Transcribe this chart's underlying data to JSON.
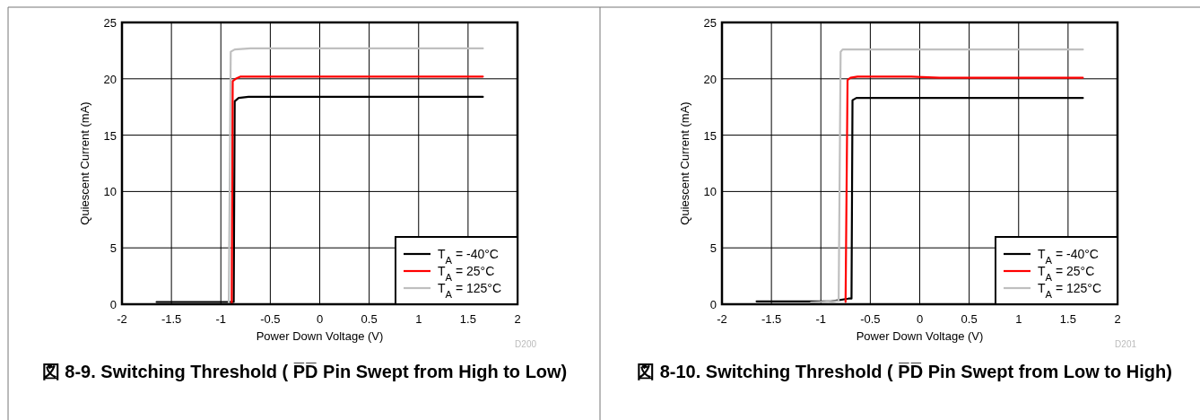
{
  "chart_data": [
    {
      "type": "line",
      "title": "図 8-9. Switching Threshold ( P̅D̅ Pin Swept from High to Low)",
      "xlabel": "Power Down Voltage (V)",
      "ylabel": "Quiescent Current (mA)",
      "annotations": [
        "D200"
      ],
      "xlim": [
        -2,
        2
      ],
      "ylim": [
        0,
        25
      ],
      "xticks": [
        -2,
        -1.5,
        -1,
        -0.5,
        0,
        0.5,
        1,
        1.5,
        2
      ],
      "yticks": [
        0,
        5,
        10,
        15,
        20,
        25
      ],
      "grid": true,
      "legend": "bottom right",
      "series": [
        {
          "name": "T$_{A}$ = -40°C",
          "color": "#000000",
          "x": [
            -1.65,
            -0.87,
            -0.86,
            -0.82,
            -0.72,
            1.65
          ],
          "values": [
            0.2,
            0.2,
            18.0,
            18.3,
            18.4,
            18.4
          ]
        },
        {
          "name": "T$_{A}$ = 25°C",
          "color": "#ff0000",
          "x": [
            -0.89,
            -0.88,
            -0.85,
            -0.8,
            1.65
          ],
          "values": [
            0.1,
            19.8,
            20.0,
            20.2,
            20.2
          ]
        },
        {
          "name": "T$_{A}$ = 125°C",
          "color": "#bfbfbf",
          "x": [
            -0.92,
            -0.9,
            -0.86,
            -0.7,
            1.65
          ],
          "values": [
            0.1,
            22.4,
            22.6,
            22.7,
            22.7
          ]
        }
      ]
    },
    {
      "type": "line",
      "title": "図 8-10. Switching Threshold ( P̅D̅ Pin Swept from Low to High)",
      "xlabel": "Power Down Voltage (V)",
      "ylabel": "Quiescent Current (mA)",
      "annotations": [
        "D201"
      ],
      "xlim": [
        -2,
        2
      ],
      "ylim": [
        0,
        25
      ],
      "xticks": [
        -2,
        -1.5,
        -1,
        -0.5,
        0,
        0.5,
        1,
        1.5,
        2
      ],
      "yticks": [
        0,
        5,
        10,
        15,
        20,
        25
      ],
      "grid": true,
      "legend": "bottom right",
      "series": [
        {
          "name": "T$_{A}$ = -40°C",
          "color": "#000000",
          "x": [
            -1.65,
            -0.9,
            -0.72,
            -0.69,
            -0.68,
            -0.64,
            1.65
          ],
          "values": [
            0.25,
            0.25,
            0.5,
            0.5,
            18.1,
            18.3,
            18.3
          ]
        },
        {
          "name": "T$_{A}$ = 25°C",
          "color": "#ff0000",
          "x": [
            -0.75,
            -0.73,
            -0.7,
            -0.63,
            -0.1,
            0.2,
            1.65
          ],
          "values": [
            0.2,
            19.9,
            20.1,
            20.2,
            20.2,
            20.1,
            20.1
          ]
        },
        {
          "name": "T$_{A}$ = 125°C",
          "color": "#bfbfbf",
          "x": [
            -1.1,
            -0.82,
            -0.8,
            -0.78,
            1.65
          ],
          "values": [
            0.15,
            0.3,
            22.4,
            22.6,
            22.6
          ]
        }
      ]
    }
  ]
}
